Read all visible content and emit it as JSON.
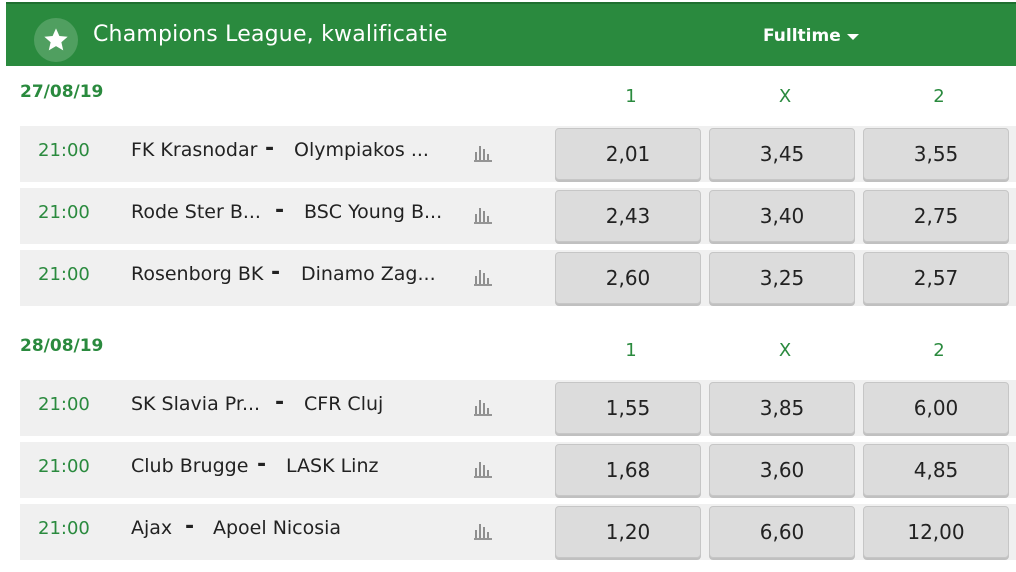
{
  "header": {
    "title": "Champions League, kwalificatie",
    "market": "Fulltime",
    "colors": {
      "green": "#2a8a3e"
    }
  },
  "columns": [
    "1",
    "X",
    "2"
  ],
  "days": [
    {
      "date": "27/08/19",
      "matches": [
        {
          "time": "21:00",
          "home": "FK Krasnodar",
          "away": "Olympiakos ...",
          "odds": [
            "2,01",
            "3,45",
            "3,55"
          ]
        },
        {
          "time": "21:00",
          "home": "Rode Ster B...",
          "away": "BSC Young B...",
          "odds": [
            "2,43",
            "3,40",
            "2,75"
          ]
        },
        {
          "time": "21:00",
          "home": "Rosenborg BK",
          "away": "Dinamo Zag...",
          "odds": [
            "2,60",
            "3,25",
            "2,57"
          ]
        }
      ]
    },
    {
      "date": "28/08/19",
      "matches": [
        {
          "time": "21:00",
          "home": "SK Slavia Pr...",
          "away": "CFR Cluj",
          "odds": [
            "1,55",
            "3,85",
            "6,00"
          ]
        },
        {
          "time": "21:00",
          "home": "Club Brugge",
          "away": "LASK Linz",
          "odds": [
            "1,68",
            "3,60",
            "4,85"
          ]
        },
        {
          "time": "21:00",
          "home": "Ajax",
          "away": "Apoel Nicosia",
          "odds": [
            "1,20",
            "6,60",
            "12,00"
          ]
        }
      ]
    }
  ],
  "icons": {
    "favorite": "star-icon",
    "stats": "bar-chart-icon",
    "dropdown": "caret-down-icon"
  }
}
